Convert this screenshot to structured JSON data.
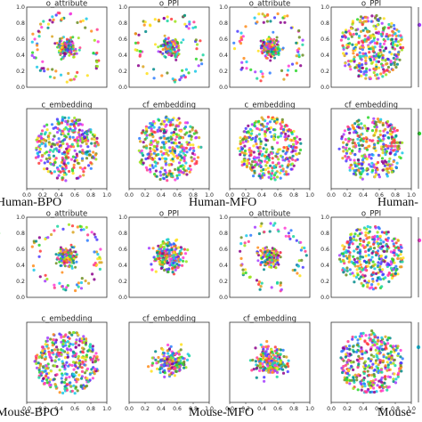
{
  "figure": {
    "group_labels": [
      "Human-BPO",
      "Human-MFO",
      "Human-CCO",
      "Mouse-BPO",
      "Mouse-MFO",
      "Mouse-CCO"
    ],
    "group_labels_visible": [
      "Human-BPO",
      "Human-MFO",
      "Human-",
      "Mouse-BPO",
      "Mouse-MFO",
      "Mouse-"
    ]
  },
  "chart_data": {
    "type": "scatter",
    "axis_ticks": [
      "0.0",
      "0.2",
      "0.4",
      "0.6",
      "0.8",
      "1.0"
    ],
    "xlim": [
      0,
      1
    ],
    "ylim": [
      0,
      1
    ],
    "grid": false,
    "palette": [
      "#ff3b3b",
      "#ff8c1a",
      "#ffe11a",
      "#9be31a",
      "#2bd62b",
      "#1ad6a0",
      "#1ac8e8",
      "#2b7bff",
      "#4b3bff",
      "#a63bff",
      "#ff3bd6",
      "#ff3b8c",
      "#6b8e23",
      "#008b8b",
      "#8b008b",
      "#daa520"
    ],
    "panels": [
      {
        "id": "p1",
        "title": "o_attribute",
        "cluster": "ring",
        "seed": 11,
        "tick_labels": false
      },
      {
        "id": "p2",
        "title": "o_PPI",
        "cluster": "ring",
        "seed": 12,
        "tick_labels": false
      },
      {
        "id": "p3",
        "title": "o_attribute",
        "cluster": "ring",
        "seed": 13,
        "tick_labels": false
      },
      {
        "id": "p4",
        "title": "o_PPI",
        "cluster": "dense",
        "seed": 14,
        "tick_labels": false
      },
      {
        "id": "p5",
        "title": "c_embedding",
        "cluster": "dense",
        "seed": 21,
        "tick_labels": true
      },
      {
        "id": "p6",
        "title": "cf_embedding",
        "cluster": "dense",
        "seed": 22,
        "tick_labels": true
      },
      {
        "id": "p7",
        "title": "c_embedding",
        "cluster": "dense",
        "seed": 23,
        "tick_labels": true
      },
      {
        "id": "p8",
        "title": "cf_embedding",
        "cluster": "dense",
        "seed": 24,
        "tick_labels": false
      },
      {
        "id": "p9",
        "title": "o_attribute",
        "cluster": "ring",
        "seed": 31,
        "tick_labels": false
      },
      {
        "id": "p10",
        "title": "o_PPI",
        "cluster": "sparse",
        "seed": 32,
        "tick_labels": false
      },
      {
        "id": "p11",
        "title": "o_attribute",
        "cluster": "ring",
        "seed": 33,
        "tick_labels": false
      },
      {
        "id": "p12",
        "title": "o_PPI",
        "cluster": "dense",
        "seed": 34,
        "tick_labels": false
      },
      {
        "id": "p13",
        "title": "c_embedding",
        "cluster": "dense",
        "seed": 41,
        "tick_labels": false
      },
      {
        "id": "p14",
        "title": "cf_embedding",
        "cluster": "sparse",
        "seed": 42,
        "tick_labels": false
      },
      {
        "id": "p15",
        "title": "cf_embedding",
        "cluster": "sparse",
        "seed": 43,
        "tick_labels": false
      },
      {
        "id": "p16",
        "title": "",
        "cluster": "dense",
        "seed": 44,
        "tick_labels": false
      }
    ]
  }
}
